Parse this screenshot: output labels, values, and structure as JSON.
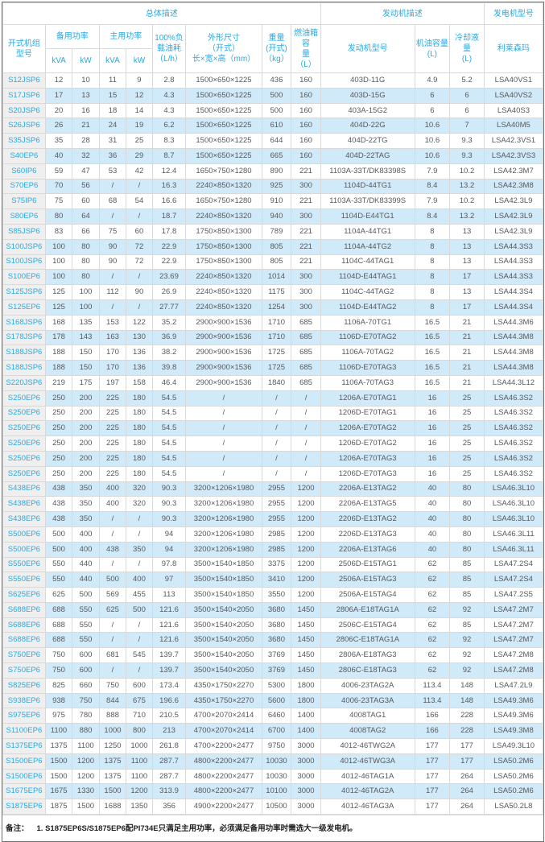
{
  "colors": {
    "accent_cyan": "#29a9e1",
    "stripe_blue": "#d0eafa",
    "model_col_gray": "#efefef",
    "grid_line": "#d9d9d9",
    "body_text": "#58595b"
  },
  "table": {
    "header": {
      "group_overall": "总体描述",
      "group_engine": "发动机描述",
      "group_alternator": "发电机型号",
      "model": "开式机组\n型号",
      "standby_power": "备用功率",
      "prime_power": "主用功率",
      "kva1": "kVA",
      "kw1": "kW",
      "kva2": "kVA",
      "kw2": "kW",
      "fuel_100": "100%负\n载油耗\n（L/h）",
      "dimensions": "外形尺寸\n（开式）\n长×宽×高（mm）",
      "weight": "重量\n(开式)\n（kg）",
      "tank": "燃油箱容\n量\n（L）",
      "engine_model": "发动机型号",
      "oil_capacity": "机油容量\n(L)",
      "coolant_capacity": "冷却液量\n(L)",
      "leroy_somer": "利莱森玛"
    },
    "rows": [
      [
        "S12JSP6",
        "12",
        "10",
        "11",
        "9",
        "2.8",
        "1500×650×1225",
        "436",
        "160",
        "403D-11G",
        "4.9",
        "5.2",
        "LSA40VS1"
      ],
      [
        "S17JSP6",
        "17",
        "13",
        "15",
        "12",
        "4.3",
        "1500×650×1225",
        "500",
        "160",
        "403D-15G",
        "6",
        "6",
        "LSA40VS2"
      ],
      [
        "S20JSP6",
        "20",
        "16",
        "18",
        "14",
        "4.3",
        "1500×650×1225",
        "500",
        "160",
        "403A-15G2",
        "6",
        "6",
        "LSA40S3"
      ],
      [
        "S26JSP6",
        "26",
        "21",
        "24",
        "19",
        "6.2",
        "1500×650×1225",
        "610",
        "160",
        "404D-22G",
        "10.6",
        "7",
        "LSA40M5"
      ],
      [
        "S35JSP6",
        "35",
        "28",
        "31",
        "25",
        "8.3",
        "1500×650×1225",
        "644",
        "160",
        "404D-22TG",
        "10.6",
        "9.3",
        "LSA42.3VS1"
      ],
      [
        "S40EP6",
        "40",
        "32",
        "36",
        "29",
        "8.7",
        "1500×650×1225",
        "665",
        "160",
        "404D-22TAG",
        "10.6",
        "9.3",
        "LSA42.3VS3"
      ],
      [
        "S60IP6",
        "59",
        "47",
        "53",
        "42",
        "12.4",
        "1650×750×1280",
        "890",
        "221",
        "1103A-33T/DK83398S",
        "7.9",
        "10.2",
        "LSA42.3M7"
      ],
      [
        "S70EP6",
        "70",
        "56",
        "/",
        "/",
        "16.3",
        "2240×850×1320",
        "925",
        "300",
        "1104D-44TG1",
        "8.4",
        "13.2",
        "LSA42.3M8"
      ],
      [
        "S75IP6",
        "75",
        "60",
        "68",
        "54",
        "16.6",
        "1650×750×1280",
        "910",
        "221",
        "1103A-33T/DK83399S",
        "7.9",
        "10.2",
        "LSA42.3L9"
      ],
      [
        "S80EP6",
        "80",
        "64",
        "/",
        "/",
        "18.7",
        "2240×850×1320",
        "940",
        "300",
        "1104D-E44TG1",
        "8.4",
        "13.2",
        "LSA42.3L9"
      ],
      [
        "S85JSP6",
        "83",
        "66",
        "75",
        "60",
        "17.8",
        "1750×850×1300",
        "789",
        "221",
        "1104A-44TG1",
        "8",
        "13",
        "LSA42.3L9"
      ],
      [
        "S100JSP6",
        "100",
        "80",
        "90",
        "72",
        "22.9",
        "1750×850×1300",
        "805",
        "221",
        "1104A-44TG2",
        "8",
        "13",
        "LSA44.3S3"
      ],
      [
        "S100JSP6",
        "100",
        "80",
        "90",
        "72",
        "22.9",
        "1750×850×1300",
        "805",
        "221",
        "1104C-44TAG1",
        "8",
        "13",
        "LSA44.3S3"
      ],
      [
        "S100EP6",
        "100",
        "80",
        "/",
        "/",
        "23.69",
        "2240×850×1320",
        "1014",
        "300",
        "1104D-E44TAG1",
        "8",
        "17",
        "LSA44.3S3"
      ],
      [
        "S125JSP6",
        "125",
        "100",
        "112",
        "90",
        "26.9",
        "2240×850×1320",
        "1175",
        "300",
        "1104C-44TAG2",
        "8",
        "13",
        "LSA44.3S4"
      ],
      [
        "S125EP6",
        "125",
        "100",
        "/",
        "/",
        "27.77",
        "2240×850×1320",
        "1254",
        "300",
        "1104D-E44TAG2",
        "8",
        "17",
        "LSA44.3S4"
      ],
      [
        "S168JSP6",
        "168",
        "135",
        "153",
        "122",
        "35.2",
        "2900×900×1536",
        "1710",
        "685",
        "1106A-70TG1",
        "16.5",
        "21",
        "LSA44.3M6"
      ],
      [
        "S178JSP6",
        "178",
        "143",
        "163",
        "130",
        "36.9",
        "2900×900×1536",
        "1710",
        "685",
        "1106D-E70TAG2",
        "16.5",
        "21",
        "LSA44.3M8"
      ],
      [
        "S188JSP6",
        "188",
        "150",
        "170",
        "136",
        "38.2",
        "2900×900×1536",
        "1725",
        "685",
        "1106A-70TAG2",
        "16.5",
        "21",
        "LSA44.3M8"
      ],
      [
        "S188JSP6",
        "188",
        "150",
        "170",
        "136",
        "39.8",
        "2900×900×1536",
        "1725",
        "685",
        "1106D-E70TAG3",
        "16.5",
        "21",
        "LSA44.3M8"
      ],
      [
        "S220JSP6",
        "219",
        "175",
        "197",
        "158",
        "46.4",
        "2900×900×1536",
        "1840",
        "685",
        "1106A-70TAG3",
        "16.5",
        "21",
        "LSA44.3L12"
      ],
      [
        "S250EP6",
        "250",
        "200",
        "225",
        "180",
        "54.5",
        "/",
        "/",
        "/",
        "1206A-E70TAG1",
        "16",
        "25",
        "LSA46.3S2"
      ],
      [
        "S250EP6",
        "250",
        "200",
        "225",
        "180",
        "54.5",
        "/",
        "/",
        "/",
        "1206D-E70TAG1",
        "16",
        "25",
        "LSA46.3S2"
      ],
      [
        "S250EP6",
        "250",
        "200",
        "225",
        "180",
        "54.5",
        "/",
        "/",
        "/",
        "1206A-E70TAG2",
        "16",
        "25",
        "LSA46.3S2"
      ],
      [
        "S250EP6",
        "250",
        "200",
        "225",
        "180",
        "54.5",
        "/",
        "/",
        "/",
        "1206D-E70TAG2",
        "16",
        "25",
        "LSA46.3S2"
      ],
      [
        "S250EP6",
        "250",
        "200",
        "225",
        "180",
        "54.5",
        "/",
        "/",
        "/",
        "1206A-E70TAG3",
        "16",
        "25",
        "LSA46.3S2"
      ],
      [
        "S250EP6",
        "250",
        "200",
        "225",
        "180",
        "54.5",
        "/",
        "/",
        "/",
        "1206D-E70TAG3",
        "16",
        "25",
        "LSA46.3S2"
      ],
      [
        "S438EP6",
        "438",
        "350",
        "400",
        "320",
        "90.3",
        "3200×1206×1980",
        "2955",
        "1200",
        "2206A-E13TAG2",
        "40",
        "80",
        "LSA46.3L10"
      ],
      [
        "S438EP6",
        "438",
        "350",
        "400",
        "320",
        "90.3",
        "3200×1206×1980",
        "2955",
        "1200",
        "2206A-E13TAG5",
        "40",
        "80",
        "LSA46.3L10"
      ],
      [
        "S438EP6",
        "438",
        "350",
        "/",
        "/",
        "90.3",
        "3200×1206×1980",
        "2955",
        "1200",
        "2206D-E13TAG2",
        "40",
        "80",
        "LSA46.3L10"
      ],
      [
        "S500EP6",
        "500",
        "400",
        "/",
        "/",
        "94",
        "3200×1206×1980",
        "2985",
        "1200",
        "2206D-E13TAG3",
        "40",
        "80",
        "LSA46.3L11"
      ],
      [
        "S500EP6",
        "500",
        "400",
        "438",
        "350",
        "94",
        "3200×1206×1980",
        "2985",
        "1200",
        "2206A-E13TAG6",
        "40",
        "80",
        "LSA46.3L11"
      ],
      [
        "S550EP6",
        "550",
        "440",
        "/",
        "/",
        "97.8",
        "3500×1540×1850",
        "3375",
        "1200",
        "2506D-E15TAG1",
        "62",
        "85",
        "LSA47.2S4"
      ],
      [
        "S550EP6",
        "550",
        "440",
        "500",
        "400",
        "97",
        "3500×1540×1850",
        "3410",
        "1200",
        "2506A-E15TAG3",
        "62",
        "85",
        "LSA47.2S4"
      ],
      [
        "S625EP6",
        "625",
        "500",
        "569",
        "455",
        "113",
        "3500×1540×1850",
        "3550",
        "1200",
        "2506A-E15TAG4",
        "62",
        "85",
        "LSA47.2S5"
      ],
      [
        "S688EP6",
        "688",
        "550",
        "625",
        "500",
        "121.6",
        "3500×1540×2050",
        "3680",
        "1450",
        "2806A-E18TAG1A",
        "62",
        "92",
        "LSA47.2M7"
      ],
      [
        "S688EP6",
        "688",
        "550",
        "/",
        "/",
        "121.6",
        "3500×1540×2050",
        "3680",
        "1450",
        "2506C-E15TAG4",
        "62",
        "85",
        "LSA47.2M7"
      ],
      [
        "S688EP6",
        "688",
        "550",
        "/",
        "/",
        "121.6",
        "3500×1540×2050",
        "3680",
        "1450",
        "2806C-E18TAG1A",
        "62",
        "92",
        "LSA47.2M7"
      ],
      [
        "S750EP6",
        "750",
        "600",
        "681",
        "545",
        "139.7",
        "3500×1540×2050",
        "3769",
        "1450",
        "2806A-E18TAG3",
        "62",
        "92",
        "LSA47.2M8"
      ],
      [
        "S750EP6",
        "750",
        "600",
        "/",
        "/",
        "139.7",
        "3500×1540×2050",
        "3769",
        "1450",
        "2806C-E18TAG3",
        "62",
        "92",
        "LSA47.2M8"
      ],
      [
        "S825EP6",
        "825",
        "660",
        "750",
        "600",
        "173.4",
        "4350×1750×2270",
        "5300",
        "1800",
        "4006-23TAG2A",
        "113.4",
        "148",
        "LSA47.2L9"
      ],
      [
        "S938EP6",
        "938",
        "750",
        "844",
        "675",
        "196.6",
        "4350×1750×2270",
        "5600",
        "1800",
        "4006-23TAG3A",
        "113.4",
        "148",
        "LSA49.3M6"
      ],
      [
        "S975EP6",
        "975",
        "780",
        "888",
        "710",
        "210.5",
        "4700×2070×2414",
        "6460",
        "1400",
        "4008TAG1",
        "166",
        "228",
        "LSA49.3M6"
      ],
      [
        "S1100EP6",
        "1100",
        "880",
        "1000",
        "800",
        "213",
        "4700×2070×2414",
        "6700",
        "1400",
        "4008TAG2",
        "166",
        "228",
        "LSA49.3M8"
      ],
      [
        "S1375EP6",
        "1375",
        "1100",
        "1250",
        "1000",
        "261.8",
        "4700×2200×2477",
        "9750",
        "3000",
        "4012-46TWG2A",
        "177",
        "177",
        "LSA49.3L10"
      ],
      [
        "S1500EP6",
        "1500",
        "1200",
        "1375",
        "1100",
        "287.7",
        "4800×2200×2477",
        "10030",
        "3000",
        "4012-46TWG3A",
        "177",
        "177",
        "LSA50.2M6"
      ],
      [
        "S1500EP6",
        "1500",
        "1200",
        "1375",
        "1100",
        "287.7",
        "4800×2200×2477",
        "10030",
        "3000",
        "4012-46TAG1A",
        "177",
        "264",
        "LSA50.2M6"
      ],
      [
        "S1675EP6",
        "1675",
        "1330",
        "1500",
        "1200",
        "313.9",
        "4800×2200×2477",
        "10100",
        "3000",
        "4012-46TAG2A",
        "177",
        "264",
        "LSA50.2M6"
      ],
      [
        "S1875EP6",
        "1875",
        "1500",
        "1688",
        "1350",
        "356",
        "4900×2200×2477",
        "10500",
        "3000",
        "4012-46TAG3A",
        "177",
        "264",
        "LSA50.2L8"
      ]
    ]
  },
  "note": {
    "label": "备注：",
    "text": "1.  S1875EP6S/S1875EP6配PI734E只满足主用功率，必须满足备用功率时需选大一级发电机。"
  }
}
